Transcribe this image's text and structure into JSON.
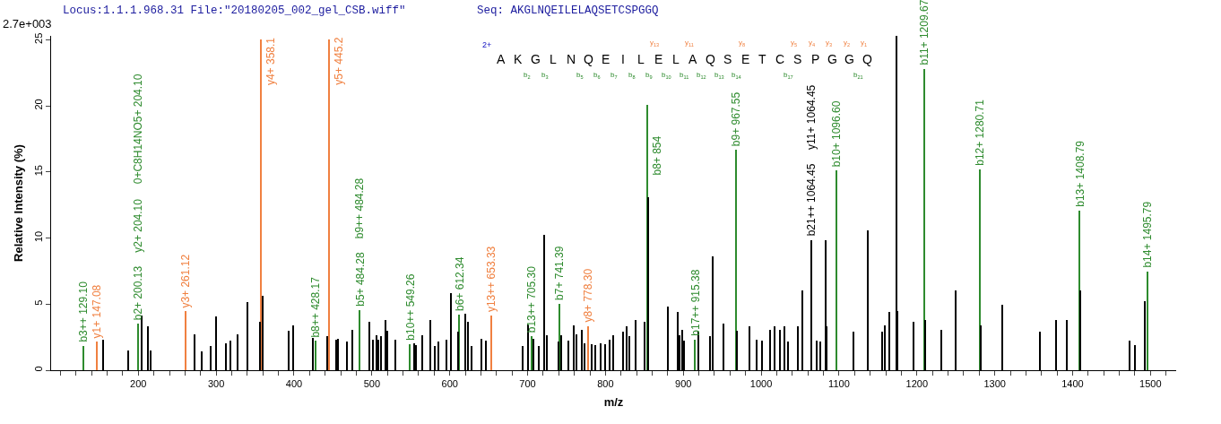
{
  "chart_data": {
    "type": "bar",
    "xlabel": "m/z",
    "ylabel": "Relative Intensity (%)",
    "xlim": [
      88,
      1533
    ],
    "ylim": [
      0,
      25.3
    ],
    "yticks": [
      0,
      5,
      10,
      15,
      20,
      25
    ],
    "xticks": [
      {
        "value": 100,
        "label": null
      },
      {
        "value": 120,
        "label": null
      },
      {
        "value": 140,
        "label": null
      },
      {
        "value": 160,
        "label": null
      },
      {
        "value": 180,
        "label": null
      },
      200,
      {
        "value": 220,
        "label": null
      },
      {
        "value": 240,
        "label": null
      },
      {
        "value": 260,
        "label": null
      },
      {
        "value": 280,
        "label": null
      },
      300,
      {
        "value": 320,
        "label": null
      },
      {
        "value": 340,
        "label": null
      },
      {
        "value": 360,
        "label": null
      },
      {
        "value": 380,
        "label": null
      },
      400,
      {
        "value": 420,
        "label": null
      },
      {
        "value": 440,
        "label": null
      },
      {
        "value": 460,
        "label": null
      },
      {
        "value": 480,
        "label": null
      },
      500,
      {
        "value": 520,
        "label": null
      },
      {
        "value": 540,
        "label": null
      },
      {
        "value": 560,
        "label": null
      },
      {
        "value": 580,
        "label": null
      },
      600,
      {
        "value": 620,
        "label": null
      },
      {
        "value": 640,
        "label": null
      },
      {
        "value": 660,
        "label": null
      },
      {
        "value": 680,
        "label": null
      },
      700,
      {
        "value": 720,
        "label": null
      },
      {
        "value": 740,
        "label": null
      },
      {
        "value": 760,
        "label": null
      },
      {
        "value": 780,
        "label": null
      },
      800,
      {
        "value": 820,
        "label": null
      },
      {
        "value": 840,
        "label": null
      },
      {
        "value": 860,
        "label": null
      },
      {
        "value": 880,
        "label": null
      },
      900,
      {
        "value": 920,
        "label": null
      },
      {
        "value": 940,
        "label": null
      },
      {
        "value": 960,
        "label": null
      },
      {
        "value": 980,
        "label": null
      },
      1000,
      {
        "value": 1020,
        "label": null
      },
      {
        "value": 1040,
        "label": null
      },
      {
        "value": 1060,
        "label": null
      },
      {
        "value": 1080,
        "label": null
      },
      1100,
      {
        "value": 1120,
        "label": null
      },
      {
        "value": 1140,
        "label": null
      },
      {
        "value": 1160,
        "label": null
      },
      {
        "value": 1180,
        "label": null
      },
      1200,
      {
        "value": 1220,
        "label": null
      },
      {
        "value": 1240,
        "label": null
      },
      {
        "value": 1260,
        "label": null
      },
      {
        "value": 1280,
        "label": null
      },
      1300,
      {
        "value": 1320,
        "label": null
      },
      {
        "value": 1340,
        "label": null
      },
      {
        "value": 1360,
        "label": null
      },
      {
        "value": 1380,
        "label": null
      },
      1400,
      {
        "value": 1420,
        "label": null
      },
      {
        "value": 1440,
        "label": null
      },
      {
        "value": 1460,
        "label": null
      },
      {
        "value": 1480,
        "label": null
      },
      1500,
      {
        "value": 1520,
        "label": null
      }
    ],
    "series": [
      {
        "color": "#2e8b2e",
        "x": [
          129.1,
          200.13,
          428.17,
          484.28,
          549.26,
          612.34,
          705.3,
          741.39,
          854,
          915.38,
          967.55,
          1096.6,
          1209.67,
          1280.71,
          1408.79,
          1495.79
        ],
        "values": [
          1.84,
          3.5,
          2.23,
          4.54,
          1.96,
          4.2,
          2.57,
          5.02,
          20.1,
          2.3,
          16.7,
          15.1,
          22.8,
          15.2,
          12.1,
          7.47
        ]
      },
      {
        "color": "#f08040",
        "x": [
          147.08,
          261.12,
          358.1,
          445.2,
          653.33,
          778.3
        ],
        "values": [
          2.16,
          4.46,
          25,
          25,
          4.13,
          3.32
        ]
      },
      {
        "color": "#000000",
        "x": [
          154.9,
          187.1,
          204.1,
          212.5,
          215.9,
          272.3,
          281.6,
          293.1,
          300,
          312.7,
          318.4,
          327.6,
          340.7,
          356.4,
          359.5,
          393.3,
          399,
          424.4,
          442.8,
          454.4,
          456.7,
          468.6,
          475.1,
          497,
          502,
          506.2,
          508.9,
          512.4,
          517.7,
          520,
          530.4,
          554.6,
          556.9,
          565,
          575.3,
          581.1,
          585.3,
          596,
          601.8,
          610.7,
          620.2,
          623.5,
          627.6,
          640.9,
          647.1,
          693.3,
          700.9,
          707.5,
          714.1,
          721.6,
          725,
          739.3,
          743.5,
          752.7,
          759.6,
          762.4,
          770,
          773.5,
          781.9,
          787.6,
          794.1,
          799.9,
          805.6,
          810.3,
          822.3,
          827.6,
          830.3,
          839.1,
          850.6,
          855.5,
          879.9,
          893.3,
          895.7,
          898.7,
          900.6,
          919.4,
          934,
          938.2,
          952,
          969.5,
          985.3,
          994.6,
          1001.5,
          1011.9,
          1017.6,
          1024.5,
          1030.3,
          1034.9,
          1047.6,
          1052.6,
          1064.45,
          1071.7,
          1075.9,
          1080.9,
          1081.8,
          1083.3,
          1084.5,
          1119,
          1137.5,
          1155.9,
          1159.4,
          1165.1,
          1174.3,
          1175.1,
          1195.6,
          1211,
          1231.5,
          1249.9,
          1282.5,
          1310.3,
          1358.7,
          1379.4,
          1393.2,
          1410.5,
          1473.8,
          1480.7,
          1493.4
        ],
        "values": [
          2.3,
          1.48,
          4.14,
          3.32,
          1.48,
          2.71,
          1.41,
          1.84,
          4.06,
          2.04,
          2.22,
          2.71,
          5.16,
          3.66,
          5.63,
          2.98,
          3.39,
          2.43,
          2.57,
          2.3,
          2.37,
          2.16,
          3.05,
          3.66,
          2.3,
          2.64,
          2.3,
          2.57,
          3.8,
          2.98,
          2.3,
          2.02,
          1.9,
          2.64,
          3.8,
          1.84,
          2.16,
          2.3,
          5.84,
          2.9,
          4.3,
          3.66,
          1.84,
          2.37,
          2.23,
          1.84,
          3.45,
          2.4,
          1.84,
          10.26,
          2.64,
          2.16,
          2.64,
          2.23,
          3.39,
          2.71,
          3.05,
          2.02,
          1.96,
          1.9,
          2.02,
          1.96,
          2.3,
          2.64,
          2.9,
          3.32,
          2.57,
          3.8,
          3.66,
          13.1,
          4.82,
          4.39,
          2.64,
          3.05,
          2.23,
          2.9,
          2.57,
          8.63,
          3.52,
          2.98,
          3.32,
          2.3,
          2.23,
          3.05,
          3.32,
          3.05,
          3.32,
          2.16,
          3.32,
          6.04,
          9.85,
          2.23,
          2.16,
          null,
          null,
          9.85,
          3.32,
          2.9,
          10.6,
          2.9,
          3.39,
          4.39,
          25.3,
          4.46,
          3.66,
          3.8,
          3.05,
          6.04,
          3.39,
          4.95,
          2.9,
          3.8,
          3.8,
          6.04,
          2.23,
          1.9,
          5.2
        ]
      }
    ],
    "annotations": [
      "Locus:1.1.1.968.31 File:\"20180205_002_gel_CSB.wiff\"",
      "Seq: AKGLNQEILELAQSETCSPGGQ",
      "2.7e+003",
      {
        "text": "b3++ 129.10",
        "x": 129.1,
        "y": 1.84
      },
      {
        "text": "y1+ 147.08",
        "x": 147.08,
        "y": 2.16
      },
      {
        "text": "b2+ 200.13",
        "x": 200.13,
        "y": 3.5
      },
      "y2+ 204.10",
      "0+C8H14NO5+ 204.10",
      {
        "text": "y3+ 261.12",
        "x": 261.12,
        "y": 4.46
      },
      {
        "text": "y4+ 358.1",
        "x": 358.1,
        "y": 21.3
      },
      {
        "text": "b8++ 428.17",
        "x": 428.17,
        "y": 2.23
      },
      {
        "text": "y5+ 445.2",
        "x": 445.2,
        "y": 21.3
      },
      {
        "text": "b5+ 484.28",
        "x": 484.28,
        "y": 4.54
      },
      "b9++ 484.28",
      {
        "text": "b10++ 549.26",
        "x": 549.26,
        "y": 1.96
      },
      {
        "text": "b6+ 612.34",
        "x": 612.34,
        "y": 4.2
      },
      {
        "text": "y13++ 653.33",
        "x": 653.33,
        "y": 4.13
      },
      {
        "text": "b13++ 705.30",
        "x": 705.3,
        "y": 2.57
      },
      {
        "text": "b7+ 741.39",
        "x": 741.39,
        "y": 5.02
      },
      {
        "text": "y8+ 778.30",
        "x": 778.3,
        "y": 3.32
      },
      {
        "text": "b8+ 854",
        "x": 854,
        "y": 14.5
      },
      {
        "text": "b17++ 915.38",
        "x": 915.38,
        "y": 2.3
      },
      {
        "text": "b9+ 967.55",
        "x": 967.55,
        "y": 16.7
      },
      {
        "text": "b21++ 1064.45",
        "x": 1064.45,
        "y": 9.85
      },
      "y11+ 1064.45",
      {
        "text": "b10+ 1096.60",
        "x": 1096.6,
        "y": 15.1
      },
      {
        "text": "b11+ 1209.67",
        "x": 1209.67,
        "y": 22.8
      },
      {
        "text": "b12+ 1280.71",
        "x": 1280.71,
        "y": 15.2
      },
      {
        "text": "b13+ 1408.79",
        "x": 1408.79,
        "y": 12.1
      },
      {
        "text": "b14+ 1495.79",
        "x": 1495.79,
        "y": 7.47
      },
      "2+",
      "A",
      "K",
      "G",
      "L",
      "N",
      "Q",
      "E",
      "I",
      "L",
      "E",
      "L",
      "A",
      "Q",
      "S",
      "E",
      "T",
      "C",
      "S",
      "P",
      "G",
      "G",
      "Q",
      "b$_{2}$",
      "b$_{3}$",
      "b$_{5}$",
      "b$_{6}$",
      "b$_{7}$",
      "b$_{8}$",
      "b$_{9}$",
      "b$_{10}$",
      "b$_{11}$",
      "b$_{12}$",
      "b$_{13}$",
      "b$_{14}$",
      "b$_{17}$",
      "b$_{21}$",
      "y$_{13}$",
      "y$_{11}$",
      "y$_{8}$",
      "y$_{5}$",
      "y$_{4}$",
      "y$_{3}$",
      "y$_{2}$",
      "y$_{1}$"
    ]
  }
}
